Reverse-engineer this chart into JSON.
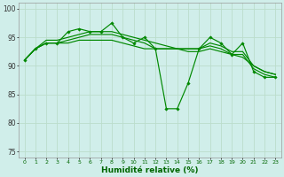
{
  "xlabel": "Humidité relative (%)",
  "background_color": "#d0eeea",
  "grid_color": "#bbddcc",
  "line_color": "#008800",
  "xlim": [
    -0.5,
    23.5
  ],
  "ylim": [
    74,
    101
  ],
  "yticks": [
    75,
    80,
    85,
    90,
    95,
    100
  ],
  "xticks": [
    0,
    1,
    2,
    3,
    4,
    5,
    6,
    7,
    8,
    9,
    10,
    11,
    12,
    13,
    14,
    15,
    16,
    17,
    18,
    19,
    20,
    21,
    22,
    23
  ],
  "line_marker": [
    91,
    93,
    94,
    94,
    96,
    96.5,
    96,
    96,
    97.5,
    95,
    94,
    95,
    93,
    82.5,
    82.5,
    87,
    93,
    95,
    94,
    92,
    94,
    89,
    88,
    88
  ],
  "line_smooth1": [
    91,
    93,
    94,
    94,
    94,
    94.5,
    94.5,
    94.5,
    94.5,
    94,
    93.5,
    93,
    93,
    93,
    93,
    92.5,
    92.5,
    93,
    92.5,
    92,
    91.5,
    90,
    89,
    88.5
  ],
  "line_smooth2": [
    91,
    93,
    94,
    94,
    94.5,
    95,
    95.5,
    95.5,
    95.5,
    95,
    94.5,
    94,
    93,
    93,
    93,
    93,
    93,
    93.5,
    93,
    92,
    92,
    89.5,
    88.5,
    88
  ],
  "line_smooth3": [
    91,
    93,
    94.5,
    94.5,
    95,
    95.5,
    96,
    96,
    96,
    95.5,
    95,
    94.5,
    94,
    93.5,
    93,
    93,
    93,
    94,
    93.5,
    92.5,
    92.5,
    90,
    89,
    88.5
  ]
}
